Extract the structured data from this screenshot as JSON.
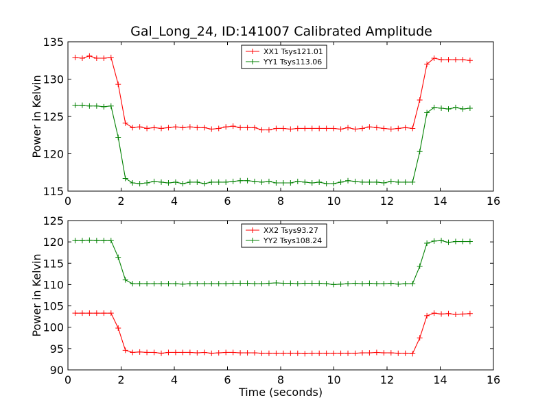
{
  "title": "Gal_Long_24, ID:141007 Calibrated Amplitude",
  "chart_data": [
    {
      "type": "line",
      "xlabel": "",
      "ylabel": "Power in Kelvin",
      "xlim": [
        0,
        16
      ],
      "ylim": [
        115,
        135
      ],
      "xticks": [
        0,
        2,
        4,
        6,
        8,
        10,
        12,
        14,
        16
      ],
      "yticks": [
        115,
        120,
        125,
        130,
        135
      ],
      "grid": false,
      "legend_position": "top-center",
      "x": [
        0.27,
        0.54,
        0.81,
        1.08,
        1.35,
        1.62,
        1.89,
        2.16,
        2.43,
        2.7,
        2.97,
        3.24,
        3.51,
        3.78,
        4.05,
        4.32,
        4.59,
        4.86,
        5.13,
        5.4,
        5.67,
        5.94,
        6.21,
        6.48,
        6.75,
        7.02,
        7.29,
        7.56,
        7.83,
        8.1,
        8.37,
        8.64,
        8.91,
        9.18,
        9.45,
        9.72,
        9.99,
        10.26,
        10.53,
        10.8,
        11.07,
        11.34,
        11.61,
        11.88,
        12.15,
        12.42,
        12.69,
        12.96,
        13.23,
        13.5,
        13.77,
        14.04,
        14.31,
        14.58,
        14.85,
        15.12
      ],
      "series": [
        {
          "name": "XX1 Tsys121.01",
          "color": "#ff0000",
          "values": [
            132.9,
            132.8,
            133.1,
            132.8,
            132.8,
            132.9,
            129.3,
            124.1,
            123.5,
            123.6,
            123.4,
            123.5,
            123.4,
            123.5,
            123.6,
            123.5,
            123.6,
            123.5,
            123.5,
            123.3,
            123.4,
            123.6,
            123.7,
            123.5,
            123.5,
            123.5,
            123.2,
            123.2,
            123.4,
            123.4,
            123.3,
            123.4,
            123.4,
            123.4,
            123.4,
            123.4,
            123.4,
            123.3,
            123.5,
            123.3,
            123.4,
            123.6,
            123.5,
            123.4,
            123.3,
            123.4,
            123.5,
            123.4,
            127.2,
            132.0,
            132.8,
            132.6,
            132.6,
            132.6,
            132.6,
            132.5
          ]
        },
        {
          "name": "YY1 Tsys113.06",
          "color": "#008000",
          "values": [
            126.5,
            126.5,
            126.4,
            126.4,
            126.3,
            126.4,
            122.2,
            116.7,
            116.1,
            116.0,
            116.1,
            116.3,
            116.2,
            116.1,
            116.2,
            116.0,
            116.2,
            116.2,
            116.0,
            116.2,
            116.2,
            116.2,
            116.3,
            116.4,
            116.4,
            116.3,
            116.2,
            116.3,
            116.1,
            116.1,
            116.1,
            116.3,
            116.2,
            116.1,
            116.2,
            116.0,
            116.0,
            116.2,
            116.4,
            116.3,
            116.2,
            116.2,
            116.2,
            116.1,
            116.3,
            116.2,
            116.2,
            116.2,
            120.3,
            125.5,
            126.2,
            126.1,
            126.0,
            126.2,
            126.0,
            126.1
          ]
        }
      ]
    },
    {
      "type": "line",
      "xlabel": "Time (seconds)",
      "ylabel": "Power in Kelvin",
      "xlim": [
        0,
        16
      ],
      "ylim": [
        90,
        125
      ],
      "xticks": [
        0,
        2,
        4,
        6,
        8,
        10,
        12,
        14,
        16
      ],
      "yticks": [
        90,
        95,
        100,
        105,
        110,
        115,
        120,
        125
      ],
      "grid": false,
      "legend_position": "top-center",
      "x": [
        0.27,
        0.54,
        0.81,
        1.08,
        1.35,
        1.62,
        1.89,
        2.16,
        2.43,
        2.7,
        2.97,
        3.24,
        3.51,
        3.78,
        4.05,
        4.32,
        4.59,
        4.86,
        5.13,
        5.4,
        5.67,
        5.94,
        6.21,
        6.48,
        6.75,
        7.02,
        7.29,
        7.56,
        7.83,
        8.1,
        8.37,
        8.64,
        8.91,
        9.18,
        9.45,
        9.72,
        9.99,
        10.26,
        10.53,
        10.8,
        11.07,
        11.34,
        11.61,
        11.88,
        12.15,
        12.42,
        12.69,
        12.96,
        13.23,
        13.5,
        13.77,
        14.04,
        14.31,
        14.58,
        14.85,
        15.12
      ],
      "series": [
        {
          "name": "XX2 Tsys93.27",
          "color": "#ff0000",
          "values": [
            103.3,
            103.3,
            103.3,
            103.3,
            103.3,
            103.3,
            99.8,
            94.6,
            94.1,
            94.2,
            94.1,
            94.1,
            93.9,
            94.1,
            94.1,
            94.1,
            94.1,
            94.0,
            94.1,
            93.9,
            94.0,
            94.1,
            94.1,
            94.0,
            94.0,
            94.0,
            93.9,
            93.9,
            93.9,
            93.9,
            93.9,
            93.9,
            93.8,
            93.9,
            93.9,
            93.9,
            93.9,
            93.9,
            93.9,
            93.9,
            94.0,
            94.0,
            94.1,
            94.0,
            94.0,
            93.9,
            93.9,
            93.8,
            97.5,
            102.7,
            103.3,
            103.1,
            103.2,
            103.0,
            103.1,
            103.2
          ]
        },
        {
          "name": "YY2 Tsys108.24",
          "color": "#008000",
          "values": [
            120.3,
            120.3,
            120.4,
            120.3,
            120.3,
            120.3,
            116.4,
            111.1,
            110.2,
            110.2,
            110.2,
            110.2,
            110.2,
            110.2,
            110.2,
            110.1,
            110.2,
            110.2,
            110.2,
            110.2,
            110.2,
            110.2,
            110.3,
            110.3,
            110.3,
            110.2,
            110.2,
            110.3,
            110.4,
            110.3,
            110.3,
            110.2,
            110.3,
            110.3,
            110.3,
            110.2,
            110.0,
            110.1,
            110.2,
            110.3,
            110.2,
            110.3,
            110.2,
            110.2,
            110.3,
            110.1,
            110.2,
            110.2,
            114.3,
            119.7,
            120.2,
            120.3,
            119.9,
            120.1,
            120.1,
            120.1
          ]
        }
      ]
    }
  ]
}
